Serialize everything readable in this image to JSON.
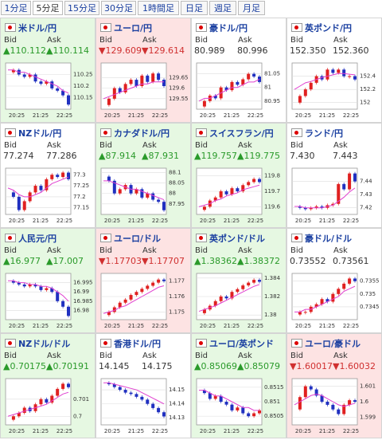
{
  "tabs": [
    "1分足",
    "5分足",
    "15分足",
    "30分足",
    "1時間足",
    "日足",
    "週足",
    "月足"
  ],
  "selected_tab": 1,
  "bid_label": "Bid",
  "ask_label": "Ask",
  "times": [
    "20:25",
    "21:25",
    "22:25"
  ],
  "panels": [
    {
      "name": "米ドル/円",
      "bid": "▲110.112",
      "ask": "▲110.114",
      "trend": "up",
      "chart": {
        "ylim": [
          110.1,
          110.3
        ],
        "yticks": [
          110.25,
          110.2,
          110.15
        ],
        "closes": [
          110.26,
          110.27,
          110.25,
          110.24,
          110.25,
          110.22,
          110.21,
          110.22,
          110.19,
          110.18,
          110.16,
          110.12
        ],
        "ma": [
          110.27,
          110.27,
          110.26,
          110.26,
          110.25,
          110.24,
          110.23,
          110.22,
          110.21,
          110.2,
          110.18,
          110.17
        ]
      }
    },
    {
      "name": "ユーロ/円",
      "bid": "▼129.609",
      "ask": "▼129.614",
      "trend": "down",
      "chart": {
        "ylim": [
          129.5,
          129.72
        ],
        "yticks": [
          129.65,
          129.6,
          129.55
        ],
        "closes": [
          129.52,
          129.55,
          129.6,
          129.58,
          129.62,
          129.64,
          129.61,
          129.66,
          129.63,
          129.67,
          129.64,
          129.61
        ],
        "ma": [
          129.55,
          129.56,
          129.57,
          129.58,
          129.59,
          129.6,
          129.61,
          129.62,
          129.62,
          129.63,
          129.63,
          129.63
        ]
      }
    },
    {
      "name": "豪ドル/円",
      "bid": "80.989",
      "ask": "80.996",
      "trend": "none",
      "chart": {
        "ylim": [
          80.92,
          81.09
        ],
        "yticks": [
          81.05,
          81,
          80.95
        ],
        "closes": [
          80.93,
          80.95,
          80.97,
          80.96,
          81.0,
          80.99,
          81.02,
          81.01,
          81.03,
          81.05,
          81.04,
          81.02
        ],
        "ma": [
          80.95,
          80.96,
          80.96,
          80.97,
          80.98,
          80.99,
          81.0,
          81.0,
          81.01,
          81.02,
          81.02,
          81.03
        ]
      }
    },
    {
      "name": "英ポンド/円",
      "bid": "152.350",
      "ask": "152.360",
      "trend": "none",
      "chart": {
        "ylim": [
          151.9,
          152.6
        ],
        "yticks": [
          152.4,
          152.2,
          152
        ],
        "closes": [
          152.0,
          152.1,
          152.2,
          152.3,
          152.4,
          152.35,
          152.5,
          152.45,
          152.5,
          152.4,
          152.4,
          152.35
        ],
        "ma": [
          152.2,
          152.25,
          152.3,
          152.32,
          152.35,
          152.38,
          152.4,
          152.42,
          152.44,
          152.44,
          152.43,
          152.42
        ]
      }
    },
    {
      "name": "NZドル/円",
      "bid": "77.274",
      "ask": "77.286",
      "trend": "none",
      "chart": {
        "ylim": [
          77.12,
          77.33
        ],
        "yticks": [
          77.3,
          77.25,
          77.2,
          77.15
        ],
        "closes": [
          77.22,
          77.2,
          77.14,
          77.18,
          77.22,
          77.25,
          77.23,
          77.28,
          77.3,
          77.29,
          77.31,
          77.28
        ],
        "ma": [
          77.24,
          77.23,
          77.21,
          77.2,
          77.2,
          77.21,
          77.22,
          77.24,
          77.26,
          77.27,
          77.28,
          77.29
        ]
      }
    },
    {
      "name": "カナダドル/円",
      "bid": "▲87.914",
      "ask": "▲87.931",
      "trend": "up",
      "chart": {
        "ylim": [
          87.9,
          88.12
        ],
        "yticks": [
          88.1,
          88.05,
          88,
          87.95
        ],
        "closes": [
          88.08,
          88.06,
          88.0,
          88.02,
          88.04,
          88.0,
          88.02,
          87.98,
          88.0,
          87.97,
          87.96,
          87.92
        ],
        "ma": [
          88.06,
          88.06,
          88.05,
          88.04,
          88.03,
          88.02,
          88.02,
          88.01,
          88.0,
          87.99,
          87.98,
          87.97
        ]
      }
    },
    {
      "name": "スイスフラン/円",
      "bid": "▲119.757",
      "ask": "▲119.775",
      "trend": "up",
      "chart": {
        "ylim": [
          119.55,
          119.85
        ],
        "yticks": [
          119.8,
          119.7,
          119.6
        ],
        "closes": [
          119.58,
          119.6,
          119.64,
          119.66,
          119.7,
          119.68,
          119.72,
          119.7,
          119.74,
          119.76,
          119.78,
          119.76
        ],
        "ma": [
          119.6,
          119.61,
          119.62,
          119.64,
          119.65,
          119.67,
          119.68,
          119.69,
          119.71,
          119.72,
          119.73,
          119.74
        ]
      }
    },
    {
      "name": "ランド/円",
      "bid": "7.430",
      "ask": "7.443",
      "trend": "none",
      "chart": {
        "ylim": [
          7.415,
          7.45
        ],
        "yticks": [
          7.44,
          7.43,
          7.42
        ],
        "closes": [
          7.421,
          7.42,
          7.419,
          7.42,
          7.421,
          7.42,
          7.422,
          7.423,
          7.438,
          7.434,
          7.446,
          7.44
        ],
        "ma": [
          7.421,
          7.421,
          7.42,
          7.42,
          7.42,
          7.42,
          7.421,
          7.422,
          7.425,
          7.428,
          7.432,
          7.435
        ]
      }
    },
    {
      "name": "人民元/円",
      "bid": "▲16.977",
      "ask": "▲17.007",
      "trend": "up",
      "chart": {
        "ylim": [
          16.975,
          17.0
        ],
        "yticks": [
          16.995,
          16.99,
          16.985,
          16.98
        ],
        "closes": [
          16.996,
          16.995,
          16.994,
          16.993,
          16.994,
          16.993,
          16.991,
          16.992,
          16.99,
          16.985,
          16.982,
          16.977
        ],
        "ma": [
          16.996,
          16.996,
          16.995,
          16.995,
          16.994,
          16.994,
          16.993,
          16.993,
          16.992,
          16.99,
          16.988,
          16.985
        ]
      }
    },
    {
      "name": "ユーロ/ドル",
      "bid": "▼1.17703",
      "ask": "▼1.17707",
      "trend": "down",
      "chart": {
        "ylim": [
          1.1745,
          1.1775
        ],
        "yticks": [
          1.177,
          1.176,
          1.175
        ],
        "closes": [
          1.1748,
          1.175,
          1.1753,
          1.1756,
          1.1758,
          1.1761,
          1.1763,
          1.1765,
          1.1767,
          1.1769,
          1.1771,
          1.177
        ],
        "ma": [
          1.1749,
          1.175,
          1.1751,
          1.1753,
          1.1754,
          1.1756,
          1.1758,
          1.176,
          1.1762,
          1.1764,
          1.1766,
          1.1767
        ]
      }
    },
    {
      "name": "英ポンド/ドル",
      "bid": "▲1.38362",
      "ask": "▲1.38372",
      "trend": "up",
      "chart": {
        "ylim": [
          1.3795,
          1.3845
        ],
        "yticks": [
          1.384,
          1.382,
          1.38
        ],
        "closes": [
          1.3802,
          1.3806,
          1.381,
          1.3815,
          1.382,
          1.3818,
          1.3825,
          1.3828,
          1.3832,
          1.3835,
          1.3838,
          1.3836
        ],
        "ma": [
          1.3804,
          1.3806,
          1.3808,
          1.381,
          1.3813,
          1.3816,
          1.3819,
          1.3822,
          1.3825,
          1.3828,
          1.3831,
          1.3833
        ]
      }
    },
    {
      "name": "豪ドル/ドル",
      "bid": "0.73552",
      "ask": "0.73561",
      "trend": "none",
      "chart": {
        "ylim": [
          0.734,
          0.7358
        ],
        "yticks": [
          0.7355,
          0.735,
          0.7345
        ],
        "closes": [
          0.7342,
          0.7343,
          0.7343,
          0.7345,
          0.7346,
          0.7348,
          0.7347,
          0.735,
          0.7352,
          0.7354,
          0.7356,
          0.7355
        ],
        "ma": [
          0.7343,
          0.7343,
          0.7344,
          0.7344,
          0.7345,
          0.7346,
          0.7347,
          0.7348,
          0.7349,
          0.7351,
          0.7352,
          0.7353
        ]
      }
    },
    {
      "name": "NZドル/ドル",
      "bid": "▲0.70175",
      "ask": "▲0.70191",
      "trend": "up",
      "chart": {
        "ylim": [
          0.6995,
          0.7022
        ],
        "yticks": [
          0.701,
          0.7
        ],
        "closes": [
          0.6998,
          0.7,
          0.7002,
          0.7005,
          0.7003,
          0.7007,
          0.701,
          0.7008,
          0.7012,
          0.7016,
          0.7019,
          0.7017
        ],
        "ma": [
          0.7,
          0.7001,
          0.7002,
          0.7003,
          0.7004,
          0.7005,
          0.7006,
          0.7007,
          0.7009,
          0.7011,
          0.7013,
          0.7014
        ]
      }
    },
    {
      "name": "香港ドル/円",
      "bid": "14.145",
      "ask": "14.175",
      "trend": "none",
      "chart": {
        "ylim": [
          14.125,
          14.158
        ],
        "yticks": [
          14.15,
          14.14,
          14.13
        ],
        "closes": [
          14.155,
          14.154,
          14.152,
          14.15,
          14.148,
          14.147,
          14.145,
          14.143,
          14.14,
          14.137,
          14.134,
          14.131
        ],
        "ma": [
          14.155,
          14.155,
          14.154,
          14.153,
          14.152,
          14.151,
          14.15,
          14.148,
          14.146,
          14.144,
          14.142,
          14.14
        ]
      }
    },
    {
      "name": "ユーロ/英ポンド",
      "bid": "▲0.85069",
      "ask": "▲0.85079",
      "trend": "up",
      "chart": {
        "ylim": [
          0.8502,
          0.8518
        ],
        "yticks": [
          0.8515,
          0.851,
          0.8505
        ],
        "closes": [
          0.8514,
          0.8513,
          0.8511,
          0.8512,
          0.851,
          0.8509,
          0.8507,
          0.8508,
          0.8506,
          0.8505,
          0.8506,
          0.8507
        ],
        "ma": [
          0.8514,
          0.8514,
          0.8513,
          0.8512,
          0.8512,
          0.8511,
          0.851,
          0.8509,
          0.8508,
          0.8508,
          0.8507,
          0.8507
        ]
      }
    },
    {
      "name": "ユーロ/豪ドル",
      "bid": "▼1.60017",
      "ask": "▼1.60032",
      "trend": "down",
      "chart": {
        "ylim": [
          1.5985,
          1.6015
        ],
        "yticks": [
          1.601,
          1.6,
          1.599
        ],
        "closes": [
          1.5995,
          1.6003,
          1.601,
          1.6008,
          1.6004,
          1.6,
          1.5998,
          1.5995,
          1.5992,
          1.5998,
          1.6001,
          1.6
        ],
        "ma": [
          1.5998,
          1.6,
          1.6002,
          1.6004,
          1.6005,
          1.6004,
          1.6002,
          1.6,
          1.5998,
          1.5997,
          1.5998,
          1.5999
        ]
      }
    }
  ]
}
